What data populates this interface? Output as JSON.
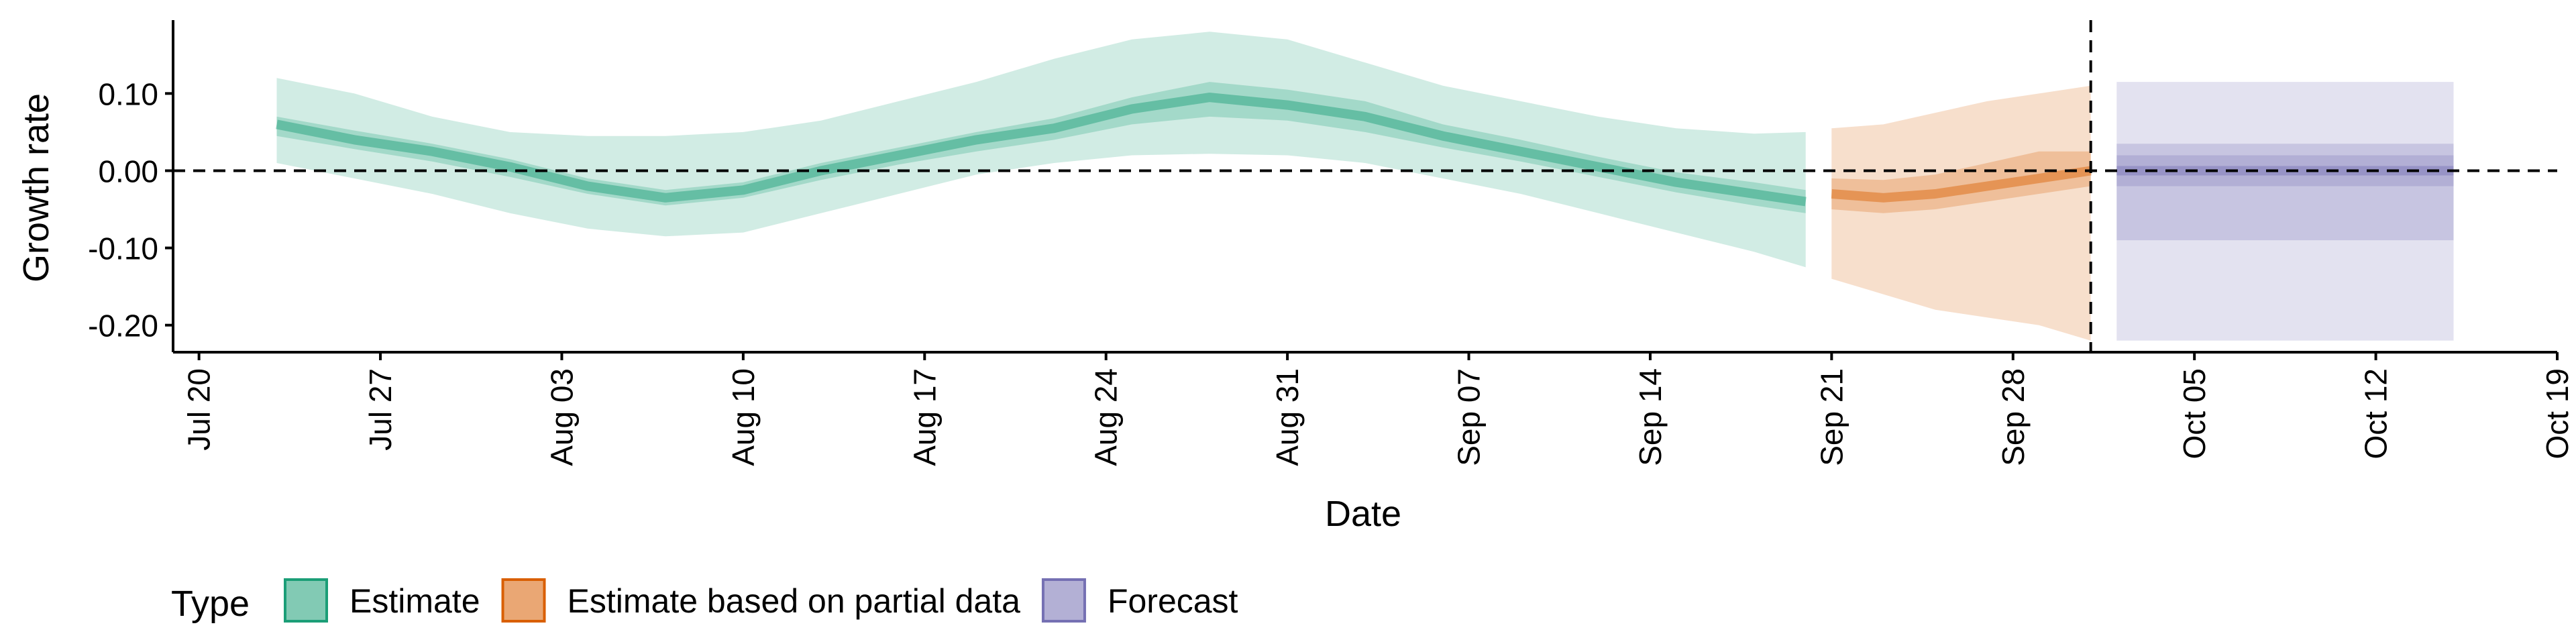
{
  "chart_data": {
    "type": "area",
    "title": "",
    "xlabel": "Date",
    "ylabel": "Growth rate",
    "ylim": [
      -0.235,
      0.195
    ],
    "xlim": [
      "2020-07-19",
      "2020-10-19"
    ],
    "y_ticks": [
      0.1,
      0.0,
      -0.1,
      -0.2
    ],
    "y_tick_labels": [
      "0.10",
      "0.00",
      "-0.10",
      "-0.20"
    ],
    "x_ticks": [
      "2020-07-20",
      "2020-07-27",
      "2020-08-03",
      "2020-08-10",
      "2020-08-17",
      "2020-08-24",
      "2020-08-31",
      "2020-09-07",
      "2020-09-14",
      "2020-09-21",
      "2020-09-28",
      "2020-10-05",
      "2020-10-12",
      "2020-10-19"
    ],
    "x_tick_labels": [
      "Jul 20",
      "Jul 27",
      "Aug 03",
      "Aug 10",
      "Aug 17",
      "Aug 24",
      "Aug 31",
      "Sep 07",
      "Sep 14",
      "Sep 21",
      "Sep 28",
      "Oct 05",
      "Oct 12",
      "Oct 19"
    ],
    "reference_lines": {
      "hline_y": 0.0,
      "vline_x": "2020-10-01"
    },
    "grid": false,
    "legend": {
      "title": "Type",
      "position": "bottom-left"
    },
    "series": [
      {
        "name": "Estimate",
        "color": "#1b9e77",
        "x": [
          "2020-07-23",
          "2020-07-26",
          "2020-07-29",
          "2020-08-01",
          "2020-08-04",
          "2020-08-07",
          "2020-08-10",
          "2020-08-13",
          "2020-08-16",
          "2020-08-19",
          "2020-08-22",
          "2020-08-25",
          "2020-08-28",
          "2020-08-31",
          "2020-09-03",
          "2020-09-06",
          "2020-09-09",
          "2020-09-12",
          "2020-09-15",
          "2020-09-18",
          "2020-09-20"
        ],
        "median": [
          0.06,
          0.04,
          0.025,
          0.005,
          -0.02,
          -0.035,
          -0.025,
          0.0,
          0.02,
          0.04,
          0.055,
          0.08,
          0.095,
          0.085,
          0.07,
          0.045,
          0.025,
          0.005,
          -0.015,
          -0.03,
          -0.04
        ],
        "inner_low": [
          0.045,
          0.028,
          0.012,
          -0.008,
          -0.03,
          -0.045,
          -0.035,
          -0.012,
          0.008,
          0.025,
          0.04,
          0.06,
          0.07,
          0.065,
          0.05,
          0.03,
          0.012,
          -0.008,
          -0.028,
          -0.045,
          -0.055
        ],
        "inner_high": [
          0.07,
          0.052,
          0.035,
          0.015,
          -0.01,
          -0.025,
          -0.015,
          0.01,
          0.03,
          0.05,
          0.068,
          0.095,
          0.115,
          0.105,
          0.09,
          0.06,
          0.04,
          0.018,
          -0.002,
          -0.015,
          -0.025
        ],
        "outer_low": [
          0.01,
          -0.01,
          -0.03,
          -0.055,
          -0.075,
          -0.085,
          -0.08,
          -0.055,
          -0.03,
          -0.005,
          0.01,
          0.02,
          0.022,
          0.02,
          0.01,
          -0.01,
          -0.03,
          -0.055,
          -0.08,
          -0.105,
          -0.125
        ],
        "outer_high": [
          0.12,
          0.1,
          0.07,
          0.05,
          0.045,
          0.045,
          0.05,
          0.065,
          0.09,
          0.115,
          0.145,
          0.17,
          0.18,
          0.17,
          0.14,
          0.11,
          0.09,
          0.07,
          0.055,
          0.048,
          0.05
        ]
      },
      {
        "name": "Estimate based on partial data",
        "color": "#d95f02",
        "x": [
          "2020-09-21",
          "2020-09-23",
          "2020-09-25",
          "2020-09-27",
          "2020-09-29",
          "2020-10-01"
        ],
        "median": [
          -0.03,
          -0.035,
          -0.03,
          -0.02,
          -0.01,
          0.0
        ],
        "inner_low": [
          -0.05,
          -0.055,
          -0.05,
          -0.04,
          -0.03,
          -0.02
        ],
        "inner_high": [
          -0.01,
          -0.012,
          -0.005,
          0.01,
          0.025,
          0.025
        ],
        "outer_low": [
          -0.14,
          -0.16,
          -0.18,
          -0.19,
          -0.2,
          -0.22
        ],
        "outer_high": [
          0.055,
          0.06,
          0.075,
          0.09,
          0.1,
          0.11
        ]
      },
      {
        "name": "Forecast",
        "color": "#7570b3",
        "x": [
          "2020-10-02",
          "2020-10-15"
        ],
        "median": [
          0.0,
          0.0
        ],
        "inner_low": [
          -0.02,
          -0.02
        ],
        "inner_high": [
          0.02,
          0.02
        ],
        "mid_low": [
          -0.09,
          -0.09
        ],
        "mid_high": [
          0.035,
          0.035
        ],
        "outer_low": [
          -0.22,
          -0.22
        ],
        "outer_high": [
          0.115,
          0.115
        ]
      }
    ]
  }
}
